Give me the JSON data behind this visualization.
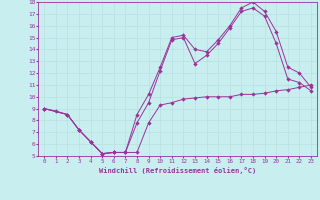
{
  "xlabel": "Windchill (Refroidissement éolien,°C)",
  "bg_color": "#c8eef0",
  "line_color": "#993399",
  "grid_color": "#b8e0e0",
  "xlim": [
    -0.5,
    23.5
  ],
  "ylim": [
    5,
    18
  ],
  "xticks": [
    0,
    1,
    2,
    3,
    4,
    5,
    6,
    7,
    8,
    9,
    10,
    11,
    12,
    13,
    14,
    15,
    16,
    17,
    18,
    19,
    20,
    21,
    22,
    23
  ],
  "yticks": [
    5,
    6,
    7,
    8,
    9,
    10,
    11,
    12,
    13,
    14,
    15,
    16,
    17,
    18
  ],
  "line1_x": [
    0,
    1,
    2,
    3,
    4,
    5,
    6,
    7,
    8,
    9,
    10,
    11,
    12,
    13,
    14,
    15,
    16,
    17,
    18,
    19,
    20,
    21,
    22,
    23
  ],
  "line1_y": [
    9.0,
    8.8,
    8.5,
    7.2,
    6.2,
    5.2,
    5.3,
    5.3,
    5.3,
    7.8,
    9.3,
    9.5,
    9.8,
    9.9,
    10.0,
    10.0,
    10.0,
    10.2,
    10.2,
    10.3,
    10.5,
    10.6,
    10.8,
    11.0
  ],
  "line2_x": [
    0,
    2,
    3,
    4,
    5,
    6,
    7,
    8,
    9,
    10,
    11,
    12,
    13,
    14,
    15,
    16,
    17,
    18,
    19,
    20,
    21,
    22,
    23
  ],
  "line2_y": [
    9.0,
    8.5,
    7.2,
    6.2,
    5.2,
    5.3,
    5.3,
    8.5,
    10.2,
    12.5,
    15.0,
    15.2,
    14.0,
    13.8,
    14.8,
    16.0,
    17.5,
    18.0,
    17.2,
    15.5,
    12.5,
    12.0,
    10.8
  ],
  "line3_x": [
    0,
    2,
    3,
    4,
    5,
    6,
    7,
    8,
    9,
    10,
    11,
    12,
    13,
    14,
    15,
    16,
    17,
    18,
    19,
    20,
    21,
    22,
    23
  ],
  "line3_y": [
    9.0,
    8.5,
    7.2,
    6.2,
    5.2,
    5.3,
    5.3,
    7.8,
    9.5,
    12.2,
    14.8,
    15.0,
    12.8,
    13.5,
    14.5,
    15.8,
    17.2,
    17.5,
    16.8,
    14.5,
    11.5,
    11.2,
    10.5
  ]
}
